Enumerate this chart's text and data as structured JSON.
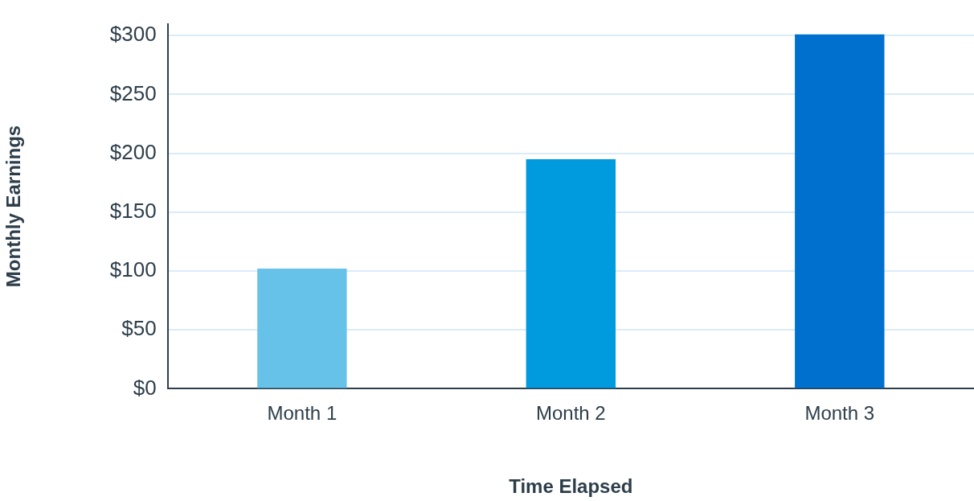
{
  "chart_data": {
    "type": "bar",
    "xlabel": "Time Elapsed",
    "ylabel": "Monthly Earnings",
    "categories": [
      "Month 1",
      "Month 2",
      "Month 3"
    ],
    "values": [
      102,
      195,
      301
    ],
    "colors": [
      "#66c2e8",
      "#009ade",
      "#0070cf"
    ],
    "ylim": [
      0,
      310
    ],
    "yticks": [
      {
        "value": 0,
        "label": "$0"
      },
      {
        "value": 50,
        "label": "$50"
      },
      {
        "value": 100,
        "label": "$100"
      },
      {
        "value": 150,
        "label": "$150"
      },
      {
        "value": 200,
        "label": "$200"
      },
      {
        "value": 250,
        "label": "$250"
      },
      {
        "value": 300,
        "label": "$300"
      }
    ],
    "grid": "y"
  }
}
